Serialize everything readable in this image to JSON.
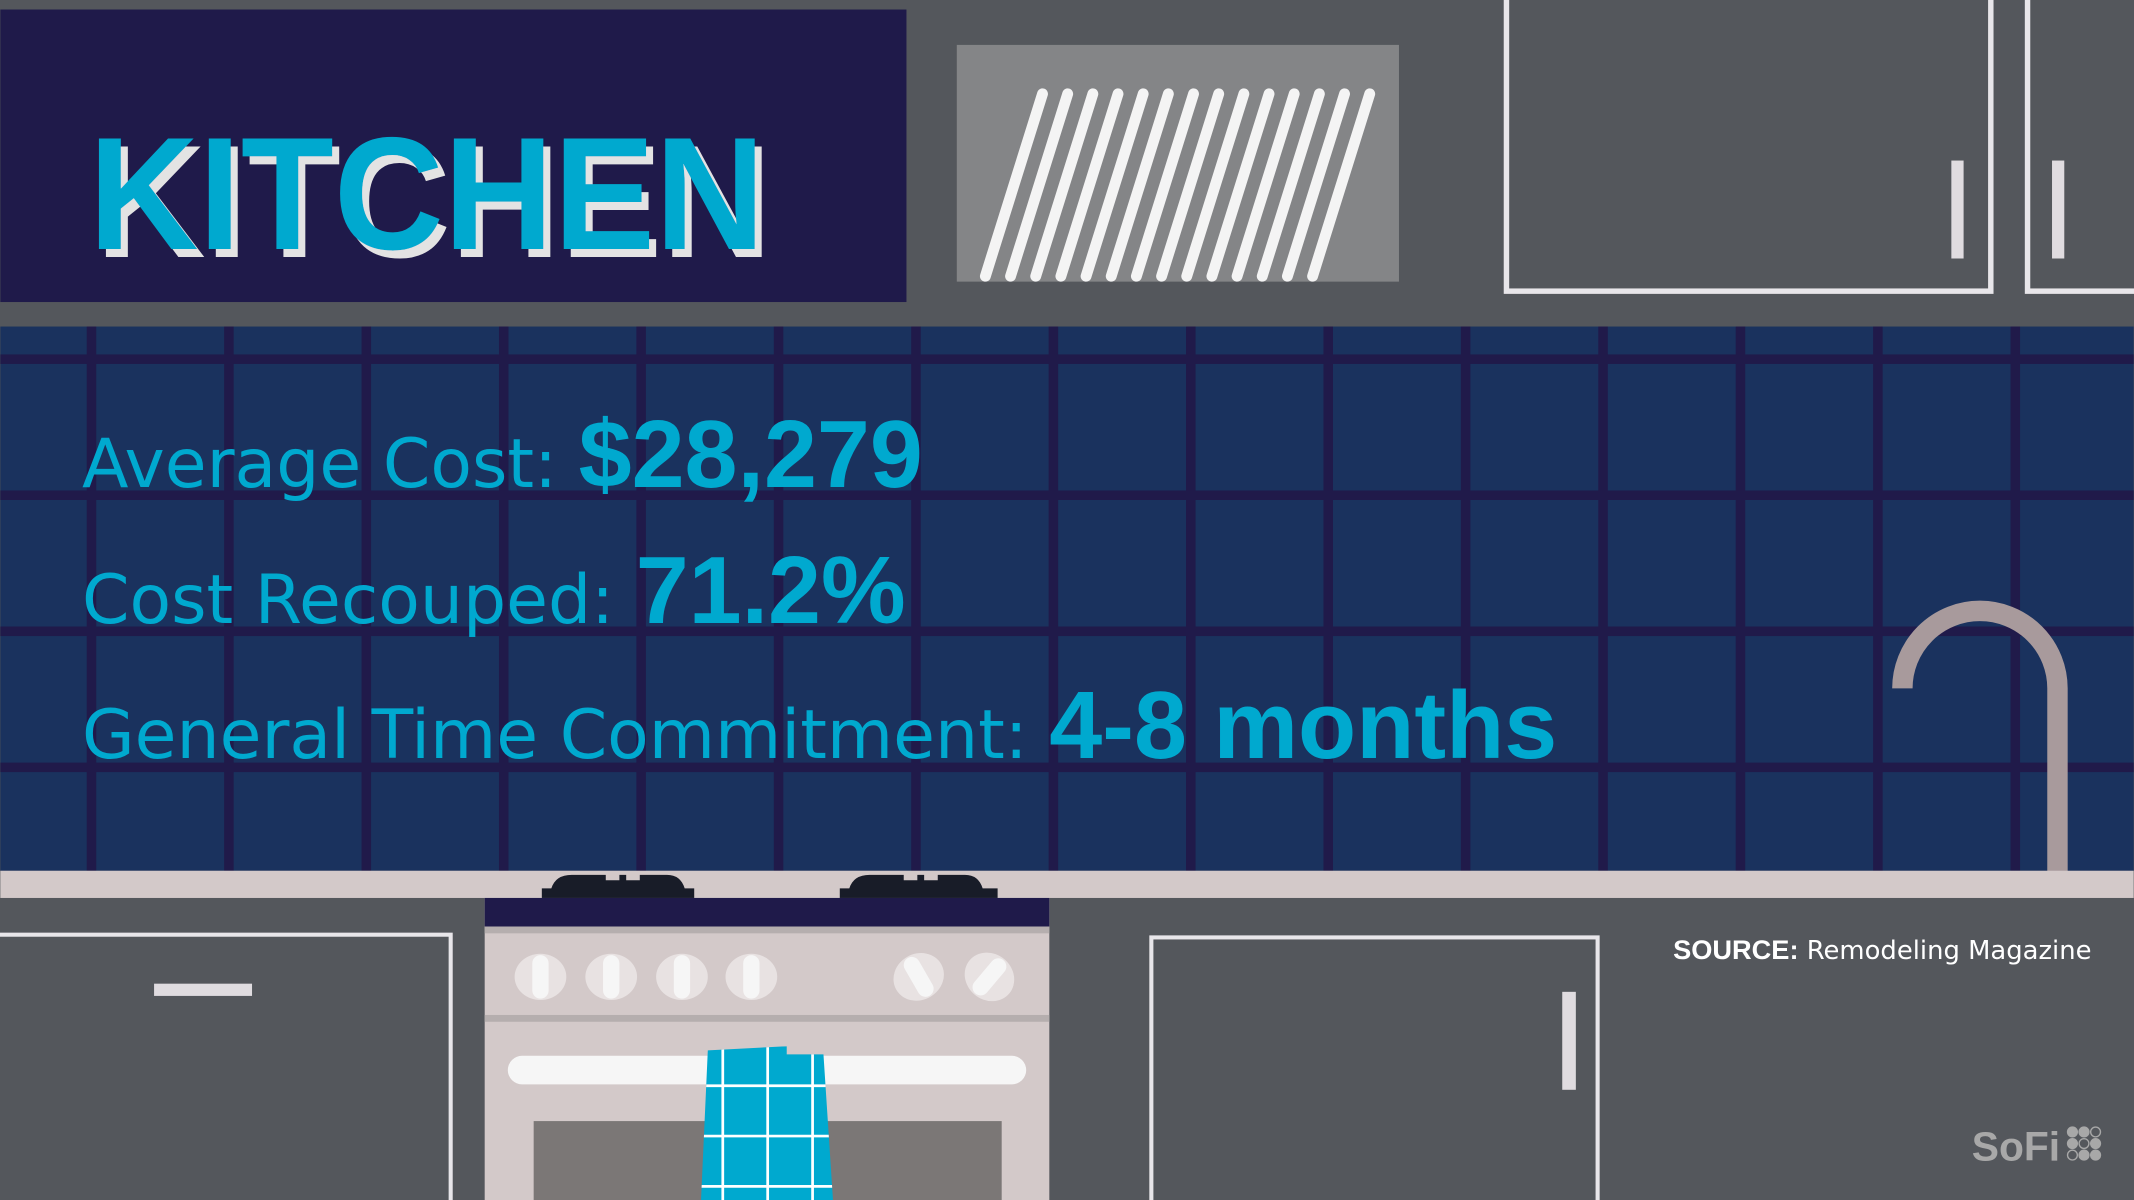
{
  "title": "KITCHEN",
  "stats": [
    {
      "label": "Average Cost: ",
      "value": "$28,279"
    },
    {
      "label": "Cost Recouped: ",
      "value": "71.2%"
    },
    {
      "label": "General Time Commitment: ",
      "value": "4-8 months"
    }
  ],
  "source": {
    "label": "SOURCE:",
    "text": " Remodeling Magazine"
  },
  "logo": {
    "text": "SoFi"
  },
  "colors": {
    "accent": "#00a9cf",
    "title_panel": "#1f1a4a",
    "tile": "#1a325e",
    "grout": "#201a4a",
    "cabinet": "#54575c",
    "counter": "#d3c9c9"
  }
}
